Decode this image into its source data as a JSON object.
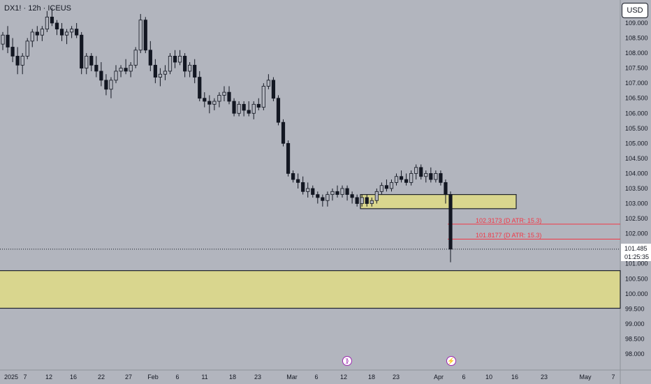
{
  "header": {
    "title": "DX1! · 12h · ICEUS",
    "currency_label": "USD"
  },
  "price_tag": {
    "price": "101.485",
    "countdown": "01:25:35"
  },
  "atr_labels": [
    "102.3173 (D ATR: 15.3)",
    "101.8177 (D ATR: 15.3)"
  ],
  "event_icons": [
    "dividend-icon",
    "flash-icon"
  ],
  "colors": {
    "background": "#b2b5be",
    "zone_fill": "#d9d68e",
    "zone_border": "#1e222d",
    "candle": "#131722",
    "atr_line": "#f23645"
  },
  "chart_data": {
    "type": "candlestick",
    "y_tick_labels": [
      "109.000",
      "108.500",
      "108.000",
      "107.500",
      "107.000",
      "106.500",
      "106.000",
      "105.500",
      "105.000",
      "104.500",
      "104.000",
      "103.500",
      "103.000",
      "102.500",
      "102.000",
      "101.500",
      "101.000",
      "100.500",
      "100.000",
      "99.500",
      "99.000",
      "98.500",
      "98.000"
    ],
    "y_ticks": [
      109,
      108.5,
      108,
      107.5,
      107,
      106.5,
      106,
      105.5,
      105,
      104.5,
      104,
      103.5,
      103,
      102.5,
      102,
      101.5,
      101,
      100.5,
      100,
      99.5,
      99,
      98.5,
      98
    ],
    "x_tick_labels": [
      "2025",
      "7",
      "12",
      "16",
      "22",
      "27",
      "Feb",
      "6",
      "11",
      "18",
      "23",
      "Mar",
      "6",
      "12",
      "18",
      "23",
      "Apr",
      "6",
      "10",
      "16",
      "23",
      "May",
      "7"
    ],
    "ylim": [
      97.8,
      109.6
    ],
    "current_price": 101.485,
    "atr_levels": [
      102.3173,
      101.8177
    ],
    "zones": [
      {
        "low": 102.83,
        "high": 103.3
      },
      {
        "low": 99.52,
        "high": 100.77
      }
    ],
    "candles": [
      {
        "o": 108.3,
        "h": 108.7,
        "l": 108.1,
        "c": 108.6
      },
      {
        "o": 108.6,
        "h": 108.9,
        "l": 108.0,
        "c": 108.2
      },
      {
        "o": 108.2,
        "h": 108.5,
        "l": 107.7,
        "c": 107.9
      },
      {
        "o": 107.9,
        "h": 108.2,
        "l": 107.3,
        "c": 107.6
      },
      {
        "o": 107.6,
        "h": 108.0,
        "l": 107.3,
        "c": 107.9
      },
      {
        "o": 107.9,
        "h": 108.5,
        "l": 107.8,
        "c": 108.4
      },
      {
        "o": 108.4,
        "h": 108.8,
        "l": 108.2,
        "c": 108.7
      },
      {
        "o": 108.7,
        "h": 108.9,
        "l": 108.4,
        "c": 108.6
      },
      {
        "o": 108.6,
        "h": 108.9,
        "l": 108.4,
        "c": 108.8
      },
      {
        "o": 108.8,
        "h": 109.4,
        "l": 108.7,
        "c": 109.2
      },
      {
        "o": 109.2,
        "h": 109.5,
        "l": 108.9,
        "c": 109.0
      },
      {
        "o": 109.0,
        "h": 109.1,
        "l": 108.6,
        "c": 108.8
      },
      {
        "o": 108.8,
        "h": 109.0,
        "l": 108.4,
        "c": 108.6
      },
      {
        "o": 108.6,
        "h": 108.8,
        "l": 108.3,
        "c": 108.7
      },
      {
        "o": 108.7,
        "h": 108.9,
        "l": 108.5,
        "c": 108.8
      },
      {
        "o": 108.8,
        "h": 109.0,
        "l": 108.5,
        "c": 108.6
      },
      {
        "o": 108.6,
        "h": 108.7,
        "l": 107.3,
        "c": 107.5
      },
      {
        "o": 107.5,
        "h": 108.0,
        "l": 107.3,
        "c": 107.9
      },
      {
        "o": 107.9,
        "h": 108.0,
        "l": 107.4,
        "c": 107.6
      },
      {
        "o": 107.6,
        "h": 107.9,
        "l": 107.2,
        "c": 107.4
      },
      {
        "o": 107.4,
        "h": 107.7,
        "l": 106.9,
        "c": 107.1
      },
      {
        "o": 107.1,
        "h": 107.3,
        "l": 106.6,
        "c": 106.8
      },
      {
        "o": 106.8,
        "h": 107.2,
        "l": 106.5,
        "c": 107.1
      },
      {
        "o": 107.1,
        "h": 107.6,
        "l": 107.0,
        "c": 107.4
      },
      {
        "o": 107.4,
        "h": 107.6,
        "l": 107.2,
        "c": 107.5
      },
      {
        "o": 107.5,
        "h": 107.8,
        "l": 107.3,
        "c": 107.4
      },
      {
        "o": 107.4,
        "h": 107.7,
        "l": 107.2,
        "c": 107.6
      },
      {
        "o": 107.6,
        "h": 108.2,
        "l": 107.5,
        "c": 108.1
      },
      {
        "o": 108.1,
        "h": 109.3,
        "l": 108.0,
        "c": 109.1
      },
      {
        "o": 109.1,
        "h": 109.2,
        "l": 108.0,
        "c": 108.1
      },
      {
        "o": 108.1,
        "h": 108.4,
        "l": 107.4,
        "c": 107.6
      },
      {
        "o": 107.6,
        "h": 107.8,
        "l": 107.0,
        "c": 107.2
      },
      {
        "o": 107.2,
        "h": 107.5,
        "l": 106.9,
        "c": 107.3
      },
      {
        "o": 107.3,
        "h": 107.6,
        "l": 107.1,
        "c": 107.4
      },
      {
        "o": 107.4,
        "h": 108.0,
        "l": 107.3,
        "c": 107.9
      },
      {
        "o": 107.9,
        "h": 108.1,
        "l": 107.5,
        "c": 107.7
      },
      {
        "o": 107.7,
        "h": 108.1,
        "l": 107.6,
        "c": 107.9
      },
      {
        "o": 107.9,
        "h": 108.0,
        "l": 107.2,
        "c": 107.4
      },
      {
        "o": 107.4,
        "h": 107.7,
        "l": 107.2,
        "c": 107.6
      },
      {
        "o": 107.6,
        "h": 107.8,
        "l": 107.0,
        "c": 107.2
      },
      {
        "o": 107.2,
        "h": 107.4,
        "l": 106.4,
        "c": 106.5
      },
      {
        "o": 106.5,
        "h": 106.7,
        "l": 106.2,
        "c": 106.4
      },
      {
        "o": 106.4,
        "h": 106.6,
        "l": 106.0,
        "c": 106.3
      },
      {
        "o": 106.3,
        "h": 106.5,
        "l": 106.1,
        "c": 106.4
      },
      {
        "o": 106.4,
        "h": 106.7,
        "l": 106.2,
        "c": 106.6
      },
      {
        "o": 106.6,
        "h": 106.9,
        "l": 106.4,
        "c": 106.7
      },
      {
        "o": 106.7,
        "h": 106.9,
        "l": 106.3,
        "c": 106.4
      },
      {
        "o": 106.4,
        "h": 106.5,
        "l": 105.9,
        "c": 106.0
      },
      {
        "o": 106.0,
        "h": 106.4,
        "l": 105.9,
        "c": 106.3
      },
      {
        "o": 106.3,
        "h": 106.4,
        "l": 105.9,
        "c": 106.1
      },
      {
        "o": 106.1,
        "h": 106.4,
        "l": 105.9,
        "c": 106.0
      },
      {
        "o": 106.0,
        "h": 106.4,
        "l": 105.8,
        "c": 106.3
      },
      {
        "o": 106.3,
        "h": 106.5,
        "l": 106.1,
        "c": 106.2
      },
      {
        "o": 106.2,
        "h": 107.0,
        "l": 106.1,
        "c": 106.9
      },
      {
        "o": 106.9,
        "h": 107.3,
        "l": 106.8,
        "c": 107.1
      },
      {
        "o": 107.1,
        "h": 107.2,
        "l": 106.4,
        "c": 106.5
      },
      {
        "o": 106.5,
        "h": 106.6,
        "l": 105.6,
        "c": 105.7
      },
      {
        "o": 105.7,
        "h": 105.8,
        "l": 104.9,
        "c": 105.0
      },
      {
        "o": 105.0,
        "h": 105.1,
        "l": 103.9,
        "c": 104.0
      },
      {
        "o": 104.0,
        "h": 104.1,
        "l": 103.7,
        "c": 103.8
      },
      {
        "o": 103.8,
        "h": 104.0,
        "l": 103.5,
        "c": 103.7
      },
      {
        "o": 103.7,
        "h": 103.9,
        "l": 103.3,
        "c": 103.4
      },
      {
        "o": 103.4,
        "h": 103.7,
        "l": 103.2,
        "c": 103.5
      },
      {
        "o": 103.5,
        "h": 103.6,
        "l": 103.2,
        "c": 103.3
      },
      {
        "o": 103.3,
        "h": 103.4,
        "l": 103.0,
        "c": 103.2
      },
      {
        "o": 103.2,
        "h": 103.3,
        "l": 102.9,
        "c": 103.1
      },
      {
        "o": 103.1,
        "h": 103.4,
        "l": 102.9,
        "c": 103.3
      },
      {
        "o": 103.3,
        "h": 103.5,
        "l": 103.1,
        "c": 103.4
      },
      {
        "o": 103.4,
        "h": 103.6,
        "l": 103.2,
        "c": 103.3
      },
      {
        "o": 103.3,
        "h": 103.6,
        "l": 103.2,
        "c": 103.5
      },
      {
        "o": 103.5,
        "h": 103.6,
        "l": 103.1,
        "c": 103.3
      },
      {
        "o": 103.3,
        "h": 103.4,
        "l": 103.0,
        "c": 103.2
      },
      {
        "o": 103.2,
        "h": 103.3,
        "l": 102.9,
        "c": 103.0
      },
      {
        "o": 103.0,
        "h": 103.3,
        "l": 102.9,
        "c": 103.2
      },
      {
        "o": 103.2,
        "h": 103.3,
        "l": 102.9,
        "c": 103.0
      },
      {
        "o": 103.0,
        "h": 103.2,
        "l": 102.9,
        "c": 103.1
      },
      {
        "o": 103.1,
        "h": 103.5,
        "l": 103.0,
        "c": 103.4
      },
      {
        "o": 103.4,
        "h": 103.7,
        "l": 103.3,
        "c": 103.6
      },
      {
        "o": 103.6,
        "h": 103.8,
        "l": 103.4,
        "c": 103.5
      },
      {
        "o": 103.5,
        "h": 103.8,
        "l": 103.4,
        "c": 103.7
      },
      {
        "o": 103.7,
        "h": 104.0,
        "l": 103.6,
        "c": 103.9
      },
      {
        "o": 103.9,
        "h": 104.1,
        "l": 103.7,
        "c": 103.8
      },
      {
        "o": 103.8,
        "h": 104.0,
        "l": 103.6,
        "c": 103.7
      },
      {
        "o": 103.7,
        "h": 104.1,
        "l": 103.6,
        "c": 104.0
      },
      {
        "o": 104.0,
        "h": 104.3,
        "l": 103.8,
        "c": 104.2
      },
      {
        "o": 104.2,
        "h": 104.3,
        "l": 103.8,
        "c": 103.9
      },
      {
        "o": 103.9,
        "h": 104.1,
        "l": 103.7,
        "c": 104.0
      },
      {
        "o": 104.0,
        "h": 104.2,
        "l": 103.7,
        "c": 103.8
      },
      {
        "o": 103.8,
        "h": 104.1,
        "l": 103.7,
        "c": 104.0
      },
      {
        "o": 104.0,
        "h": 104.1,
        "l": 103.6,
        "c": 103.7
      },
      {
        "o": 103.7,
        "h": 103.8,
        "l": 103.0,
        "c": 103.3
      },
      {
        "o": 103.3,
        "h": 103.4,
        "l": 101.05,
        "c": 101.485
      }
    ]
  }
}
